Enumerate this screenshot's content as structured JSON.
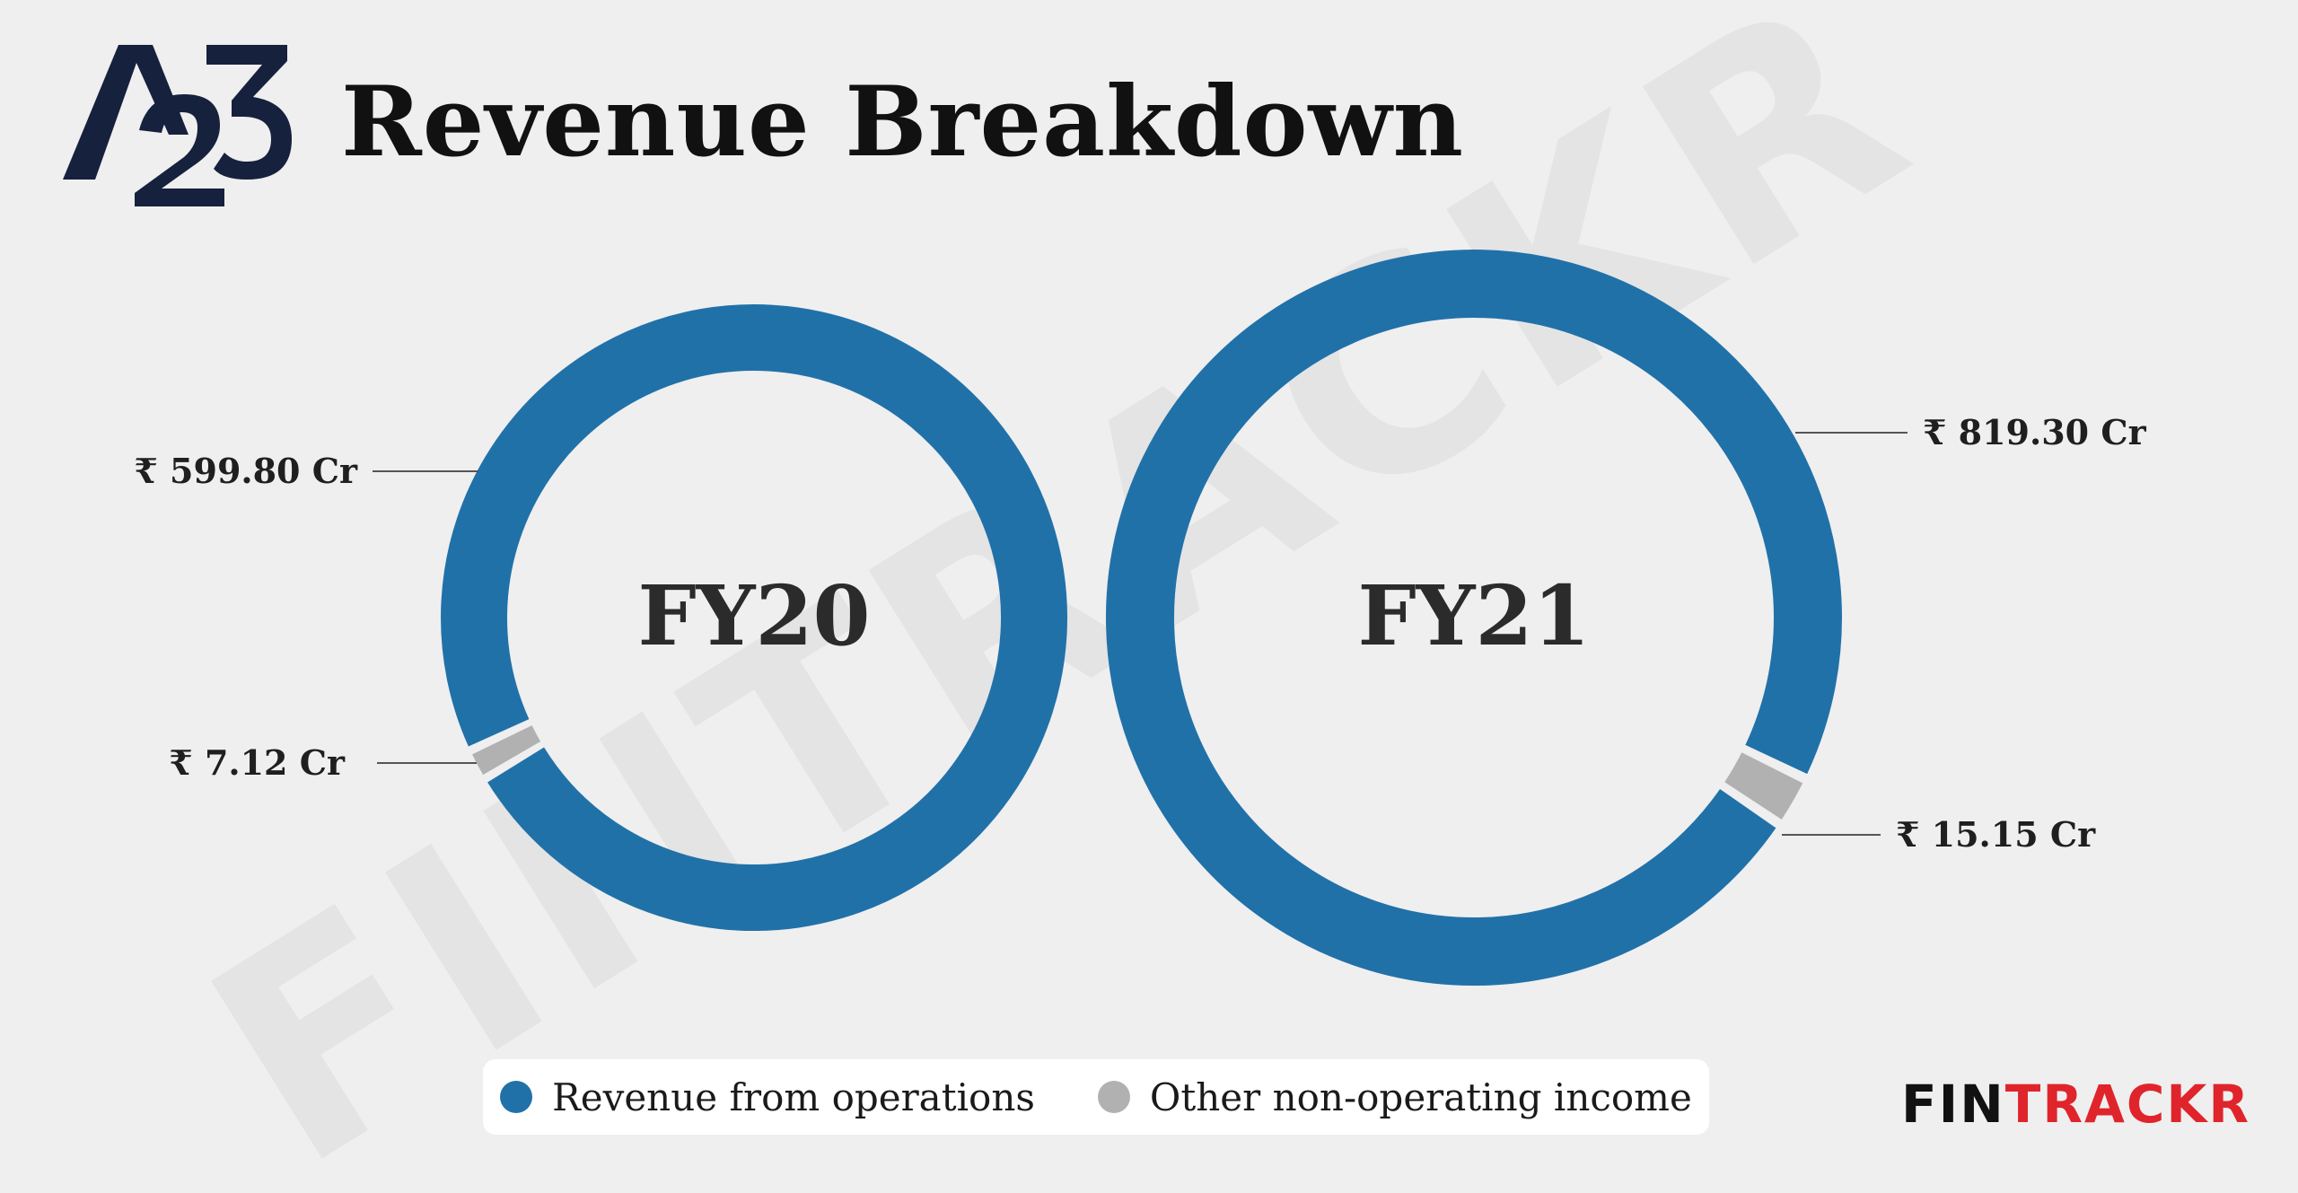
{
  "header": {
    "logo_text": "A23",
    "title": "Revenue Breakdown"
  },
  "colors": {
    "primary": "#2171a9",
    "secondary": "#b1b1b1",
    "text": "#222222",
    "brand_red": "#e0242b",
    "background": "#efefef"
  },
  "chart_data": [
    {
      "type": "pie",
      "donut": true,
      "center_label": "FY20",
      "categories": [
        "Revenue from operations",
        "Other non-operating income"
      ],
      "values": [
        599.8,
        7.12
      ],
      "labels": [
        "₹ 599.80 Cr",
        "₹ 7.12 Cr"
      ],
      "colors": [
        "#2171a9",
        "#b1b1b1"
      ]
    },
    {
      "type": "pie",
      "donut": true,
      "center_label": "FY21",
      "categories": [
        "Revenue from operations",
        "Other non-operating income"
      ],
      "values": [
        819.3,
        15.15
      ],
      "labels": [
        "₹ 819.30 Cr",
        "₹ 15.15 Cr"
      ],
      "colors": [
        "#2171a9",
        "#b1b1b1"
      ]
    }
  ],
  "legend": {
    "items": [
      {
        "label": "Revenue from operations",
        "color": "#2171a9"
      },
      {
        "label": "Other non-operating income",
        "color": "#b1b1b1"
      }
    ],
    "placement": "bottom"
  },
  "brand": {
    "part1": "FIN",
    "part2": "TRACKR",
    "watermark": "FINTRACKR"
  }
}
